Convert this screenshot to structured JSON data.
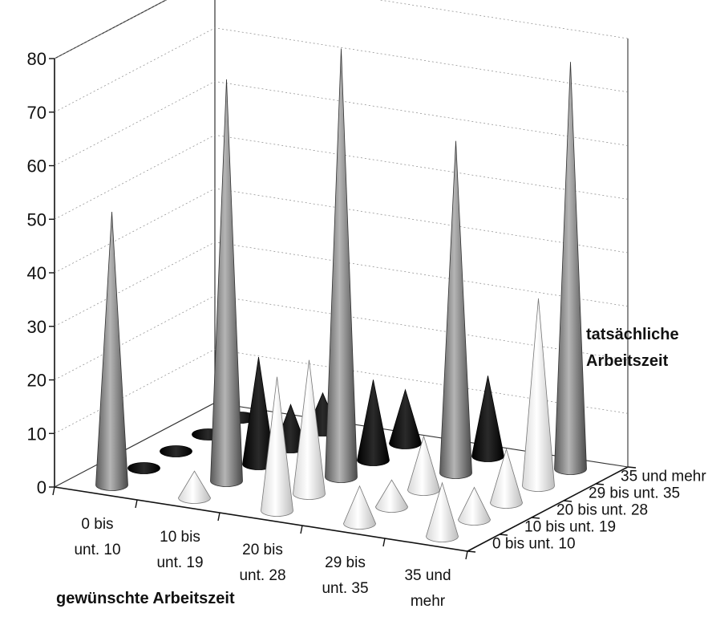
{
  "chart_data": {
    "type": "3d-cone",
    "title": "",
    "y_ticks": [
      "0",
      "10",
      "20",
      "30",
      "40",
      "50",
      "60",
      "70",
      "80"
    ],
    "ylim": [
      0,
      80
    ],
    "x_axis_title": "gewünschte Arbeitszeit",
    "x_categories": [
      [
        "0 bis",
        "unt. 10"
      ],
      [
        "10 bis",
        "unt. 19"
      ],
      [
        "20 bis",
        "unt. 28"
      ],
      [
        "29 bis",
        "unt. 35"
      ],
      [
        "35 und",
        "mehr"
      ]
    ],
    "z_axis_title": [
      "tatsächliche",
      "Arbeitszeit"
    ],
    "z_categories": [
      "0 bis unt. 10",
      "10 bis unt. 19",
      "20 bis unt. 28",
      "29 bis unt. 35",
      "35 und mehr"
    ],
    "grid": true,
    "values": [
      [
        51,
        1,
        1,
        2,
        2
      ],
      [
        5,
        75,
        20,
        8,
        7
      ],
      [
        25,
        25,
        80,
        15,
        10
      ],
      [
        7,
        5,
        10,
        62,
        15
      ],
      [
        10,
        6,
        10,
        35,
        76
      ]
    ],
    "values_note_order": "values[x][z]",
    "colors": {
      "cone_main": "#8a8a8a",
      "cone_above": "#111111",
      "cone_below": "#e8e8e8"
    }
  }
}
